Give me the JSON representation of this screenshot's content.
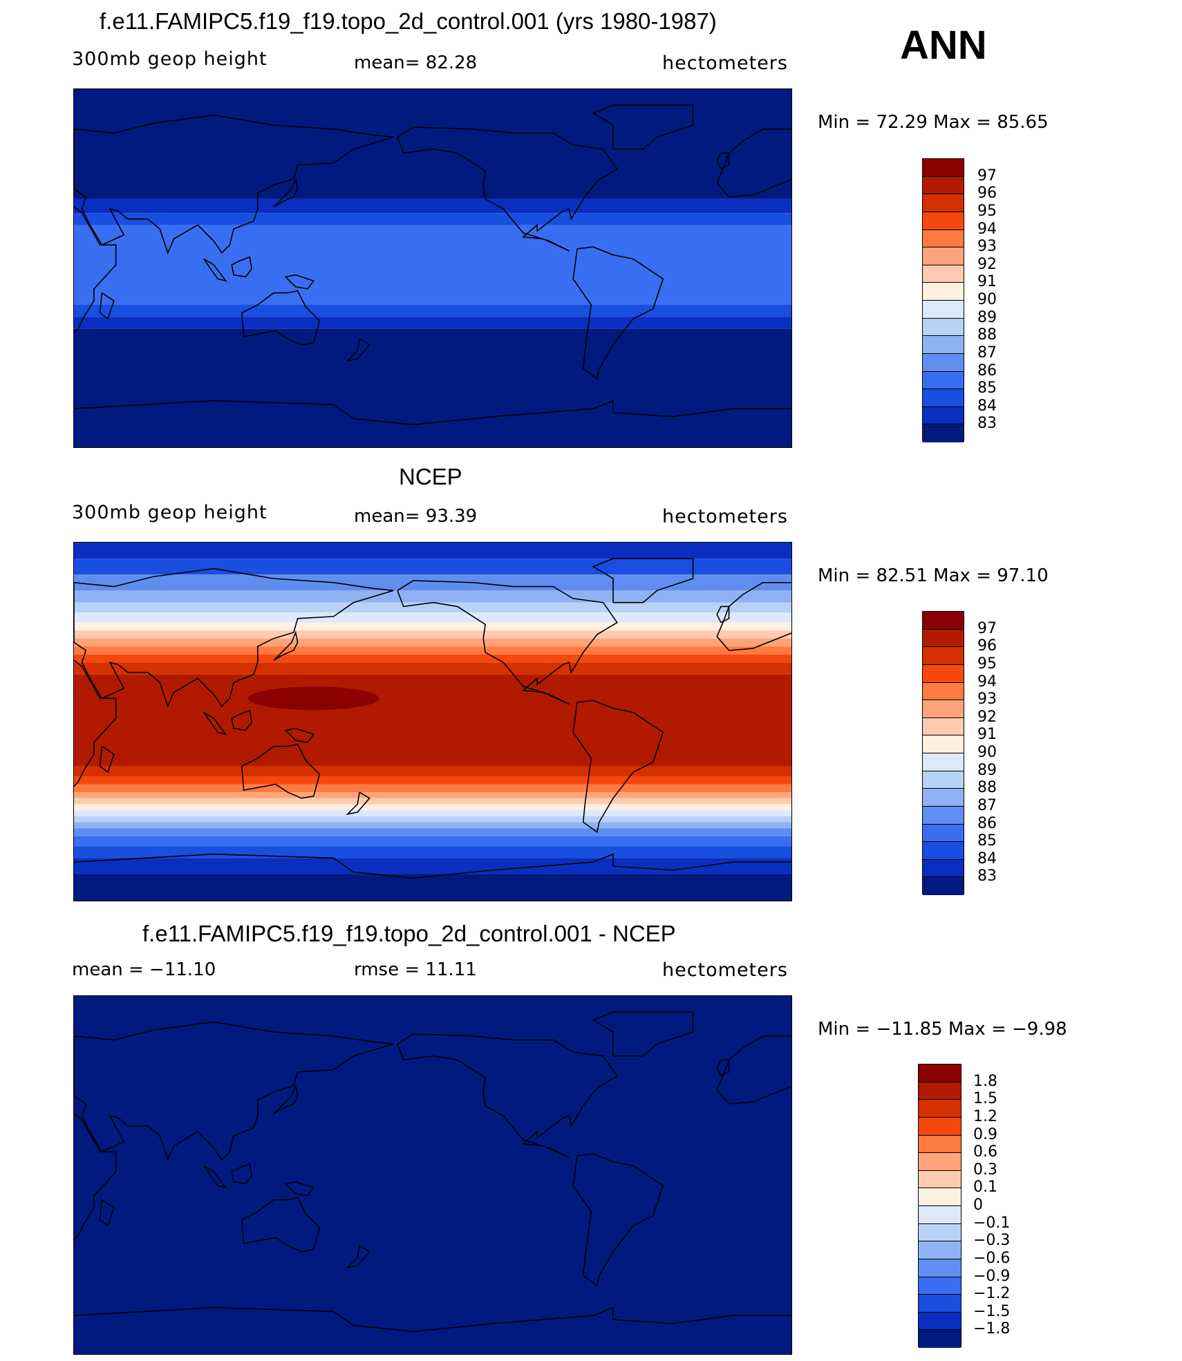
{
  "annotation": "ANN",
  "panels": [
    {
      "title": "f.e11.FAMIPC5.f19_f19.topo_2d_control.001 (yrs 1980-1987)",
      "variable_label": "300mb  geop  height",
      "center_stat": "mean=   82.28",
      "units": "hectometers",
      "minmax": "Min  =    72.29  Max  =    85.65"
    },
    {
      "title": "NCEP",
      "variable_label": "300mb  geop  height",
      "center_stat": "mean=   93.39",
      "units": "hectometers",
      "minmax": "Min  =    82.51  Max  =    97.10"
    },
    {
      "title": "f.e11.FAMIPC5.f19_f19.topo_2d_control.001 - NCEP",
      "variable_label": "mean  =  −11.10",
      "center_stat": "rmse  =    11.11",
      "units": "hectometers",
      "minmax": "Min  =  −11.85  Max  =    −9.98"
    }
  ],
  "colorbars": {
    "absolute": {
      "labels": [
        "97",
        "96",
        "95",
        "94",
        "93",
        "92",
        "91",
        "90",
        "89",
        "88",
        "87",
        "86",
        "85",
        "84",
        "83"
      ],
      "colors": [
        "#8b0000",
        "#b21a00",
        "#d53000",
        "#f5480f",
        "#ff7a40",
        "#ffa47a",
        "#ffcbb0",
        "#fff0e0",
        "#dce9fb",
        "#b8d1f7",
        "#8fb2f4",
        "#5f8ef0",
        "#3a6ef0",
        "#1a4ee0",
        "#0a2fc0",
        "#001a80"
      ]
    },
    "difference": {
      "labels": [
        "1.8",
        "1.5",
        "1.2",
        "0.9",
        "0.6",
        "0.3",
        "0.1",
        "0",
        "−0.1",
        "−0.3",
        "−0.6",
        "−0.9",
        "−1.2",
        "−1.5",
        "−1.8"
      ],
      "colors": [
        "#8b0000",
        "#b21a00",
        "#d53000",
        "#f5480f",
        "#ff7a40",
        "#ffa47a",
        "#ffcbb0",
        "#fff0e0",
        "#dce9fb",
        "#b8d1f7",
        "#8fb2f4",
        "#5f8ef0",
        "#3a6ef0",
        "#1a4ee0",
        "#0a2fc0",
        "#001a80"
      ]
    }
  },
  "fields": {
    "model_field_bands": [
      {
        "lat_top": 90,
        "lat_bottom": 35,
        "value_band": "<83"
      },
      {
        "lat_top": 35,
        "lat_bottom": 28,
        "value_band": "83-84"
      },
      {
        "lat_top": 28,
        "lat_bottom": 22,
        "value_band": "84-85"
      },
      {
        "lat_top": 22,
        "lat_bottom": -18,
        "value_band": "85-86"
      },
      {
        "lat_top": -18,
        "lat_bottom": -24,
        "value_band": "84-85"
      },
      {
        "lat_top": -24,
        "lat_bottom": -30,
        "value_band": "83-84"
      },
      {
        "lat_top": -30,
        "lat_bottom": -90,
        "value_band": "<83"
      }
    ],
    "ncep_max_region": "97+ over the western tropical Pacific near the Philippines",
    "difference_field": "uniformly below -1.8"
  }
}
